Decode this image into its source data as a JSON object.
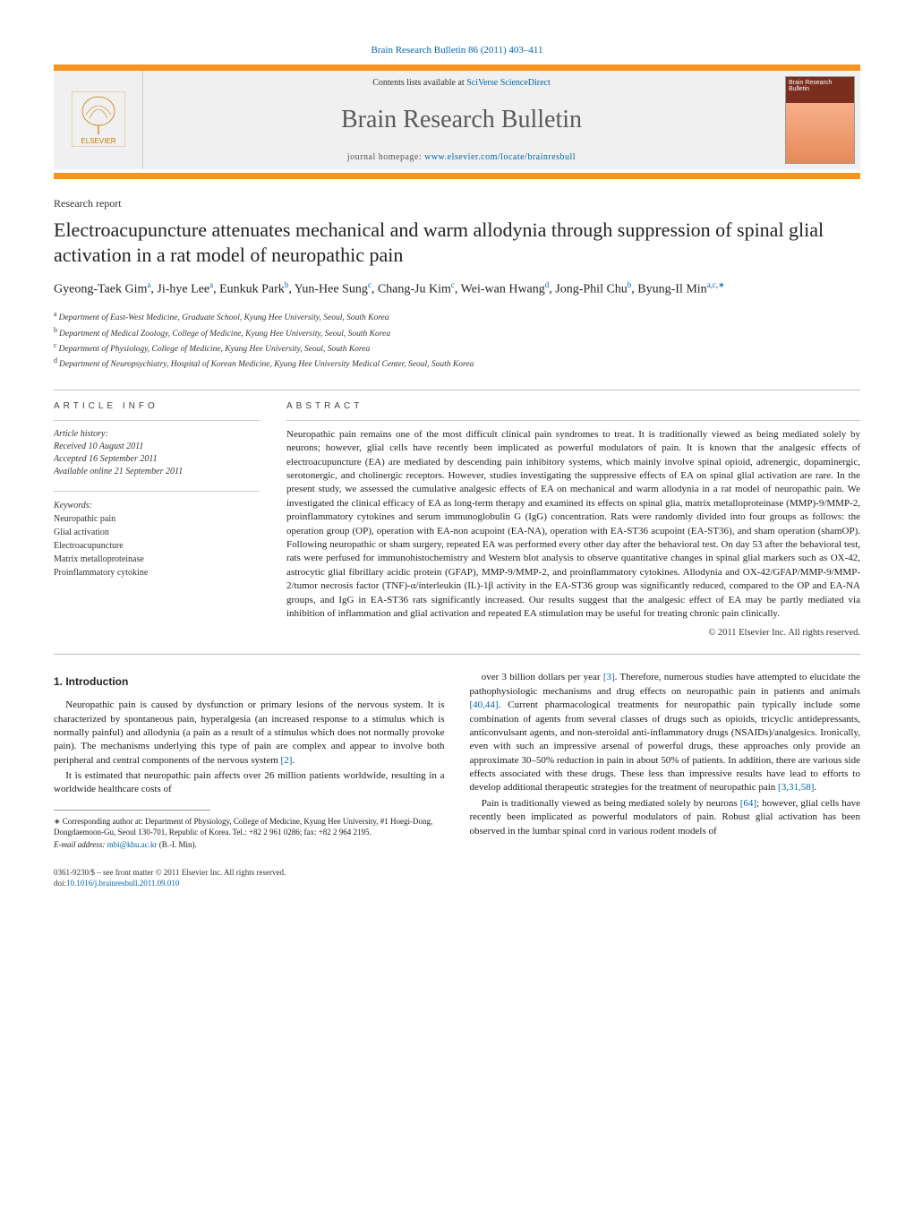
{
  "journal_ref_prefix": "Brain Research Bulletin 86 (2011) 403–411",
  "header": {
    "contents_prefix": "Contents lists available at ",
    "contents_link": "SciVerse ScienceDirect",
    "journal_name": "Brain Research Bulletin",
    "homepage_prefix": "journal homepage: ",
    "homepage_url": "www.elsevier.com/locate/brainresbull",
    "publisher_logo_text": "ELSEVIER",
    "cover_text": "Brain Research Bulletin"
  },
  "section_label": "Research report",
  "title": "Electroacupuncture attenuates mechanical and warm allodynia through suppression of spinal glial activation in a rat model of neuropathic pain",
  "authors_html": "Gyeong-Taek Gim|a|, Ji-hye Lee|a|, Eunkuk Park|b|, Yun-Hee Sung|c|, Chang-Ju Kim|c|, Wei-wan Hwang|d|, Jong-Phil Chu|b|, Byung-Il Min|a,c,∗|",
  "authors": [
    {
      "name": "Gyeong-Taek Gim",
      "aff": "a"
    },
    {
      "name": "Ji-hye Lee",
      "aff": "a"
    },
    {
      "name": "Eunkuk Park",
      "aff": "b"
    },
    {
      "name": "Yun-Hee Sung",
      "aff": "c"
    },
    {
      "name": "Chang-Ju Kim",
      "aff": "c"
    },
    {
      "name": "Wei-wan Hwang",
      "aff": "d"
    },
    {
      "name": "Jong-Phil Chu",
      "aff": "b"
    },
    {
      "name": "Byung-Il Min",
      "aff": "a,c,∗"
    }
  ],
  "affiliations": [
    {
      "sup": "a",
      "text": "Department of East-West Medicine, Graduate School, Kyung Hee University, Seoul, South Korea"
    },
    {
      "sup": "b",
      "text": "Department of Medical Zoology, College of Medicine, Kyung Hee University, Seoul, South Korea"
    },
    {
      "sup": "c",
      "text": "Department of Physiology, College of Medicine, Kyung Hee University, Seoul, South Korea"
    },
    {
      "sup": "d",
      "text": "Department of Neuropsychiatry, Hospital of Korean Medicine, Kyung Hee University Medical Center, Seoul, South Korea"
    }
  ],
  "info": {
    "heading": "article info",
    "history_label": "Article history:",
    "received": "Received 10 August 2011",
    "accepted": "Accepted 16 September 2011",
    "online": "Available online 21 September 2011",
    "keywords_label": "Keywords:",
    "keywords": [
      "Neuropathic pain",
      "Glial activation",
      "Electroacupuncture",
      "Matrix metalloproteinase",
      "Proinflammatory cytokine"
    ]
  },
  "abstract": {
    "heading": "abstract",
    "text": "Neuropathic pain remains one of the most difficult clinical pain syndromes to treat. It is traditionally viewed as being mediated solely by neurons; however, glial cells have recently been implicated as powerful modulators of pain. It is known that the analgesic effects of electroacupuncture (EA) are mediated by descending pain inhibitory systems, which mainly involve spinal opioid, adrenergic, dopaminergic, serotonergic, and cholinergic receptors. However, studies investigating the suppressive effects of EA on spinal glial activation are rare. In the present study, we assessed the cumulative analgesic effects of EA on mechanical and warm allodynia in a rat model of neuropathic pain. We investigated the clinical efficacy of EA as long-term therapy and examined its effects on spinal glia, matrix metalloproteinase (MMP)-9/MMP-2, proinflammatory cytokines and serum immunoglobulin G (IgG) concentration. Rats were randomly divided into four groups as follows: the operation group (OP), operation with EA-non acupoint (EA-NA), operation with EA-ST36 acupoint (EA-ST36), and sham operation (shamOP). Following neuropathic or sham surgery, repeated EA was performed every other day after the behavioral test. On day 53 after the behavioral test, rats were perfused for immunohistochemistry and Western blot analysis to observe quantitative changes in spinal glial markers such as OX-42, astrocytic glial fibrillary acidic protein (GFAP), MMP-9/MMP-2, and proinflammatory cytokines. Allodynia and OX-42/GFAP/MMP-9/MMP-2/tumor necrosis factor (TNF)-α/interleukin (IL)-1β activity in the EA-ST36 group was significantly reduced, compared to the OP and EA-NA groups, and IgG in EA-ST36 rats significantly increased. Our results suggest that the analgesic effect of EA may be partly mediated via inhibition of inflammation and glial activation and repeated EA stimulation may be useful for treating chronic pain clinically.",
    "copyright": "© 2011 Elsevier Inc. All rights reserved."
  },
  "body": {
    "intro_heading": "1. Introduction",
    "p1": "Neuropathic pain is caused by dysfunction or primary lesions of the nervous system. It is characterized by spontaneous pain, hyperalgesia (an increased response to a stimulus which is normally painful) and allodynia (a pain as a result of a stimulus which does not normally provoke pain). The mechanisms underlying this type of pain are complex and appear to involve both peripheral and central components of the nervous system ",
    "p1_ref": "[2]",
    "p1_tail": ".",
    "p2": "It is estimated that neuropathic pain affects over 26 million patients worldwide, resulting in a worldwide healthcare costs of",
    "p3_a": "over 3 billion dollars per year ",
    "p3_ref1": "[3]",
    "p3_b": ". Therefore, numerous studies have attempted to elucidate the pathophysiologic mechanisms and drug effects on neuropathic pain in patients and animals ",
    "p3_ref2": "[40,44]",
    "p3_c": ". Current pharmacological treatments for neuropathic pain typically include some combination of agents from several classes of drugs such as opioids, tricyclic antidepressants, anticonvulsant agents, and non-steroidal anti-inflammatory drugs (NSAIDs)/analgesics. Ironically, even with such an impressive arsenal of powerful drugs, these approaches only provide an approximate 30–50% reduction in pain in about 50% of patients. In addition, there are various side effects associated with these drugs. These less than impressive results have lead to efforts to develop additional therapeutic strategies for the treatment of neuropathic pain ",
    "p3_ref3": "[3,31,58]",
    "p3_d": ".",
    "p4_a": "Pain is traditionally viewed as being mediated solely by neurons ",
    "p4_ref1": "[64]",
    "p4_b": "; however, glial cells have recently been implicated as powerful modulators of pain. Robust glial activation has been observed in the lumbar spinal cord in various rodent models of"
  },
  "footnotes": {
    "corr": "∗ Corresponding author at: Department of Physiology, College of Medicine, Kyung Hee University, #1 Hoegi-Dong, Dongdaemoon-Gu, Seoul 130-701, Republic of Korea. Tel.: +82 2 961 0286; fax: +82 2 964 2195.",
    "email_label": "E-mail address: ",
    "email": "mbi@khu.ac.kr",
    "email_tail": " (B.-I. Min)."
  },
  "footer": {
    "line1": "0361-9230/$ – see front matter © 2011 Elsevier Inc. All rights reserved.",
    "doi_label": "doi:",
    "doi": "10.1016/j.brainresbull.2011.09.010"
  },
  "colors": {
    "accent_orange": "#f7941e",
    "link_blue": "#0066aa",
    "cover_top": "#7a2e1e",
    "cover_bottom": "#e68a5a"
  }
}
